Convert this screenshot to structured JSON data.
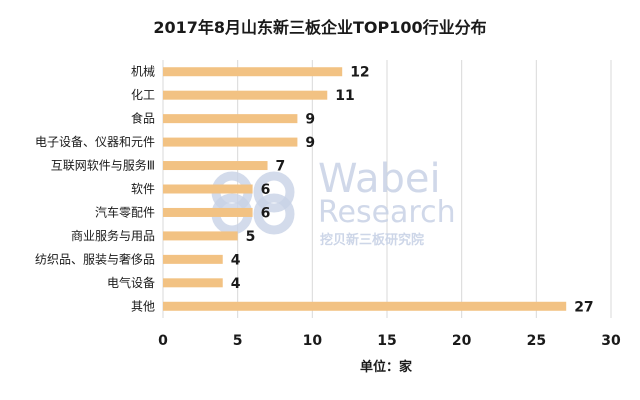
{
  "chart_data": {
    "type": "bar",
    "orientation": "horizontal",
    "title": "2017年8月山东新三板企业TOP100行业分布",
    "categories": [
      "机械",
      "化工",
      "食品",
      "电子设备、仪器和元件",
      "互联网软件与服务Ⅲ",
      "软件",
      "汽车零配件",
      "商业服务与用品",
      "纺织品、服装与奢侈品",
      "电气设备",
      "其他"
    ],
    "values": [
      12,
      11,
      9,
      9,
      7,
      6,
      6,
      5,
      4,
      4,
      27
    ],
    "xlabel": "单位：家",
    "ylabel": "",
    "xlim": [
      0,
      30
    ],
    "xticks": [
      0,
      5,
      10,
      15,
      20,
      25,
      30
    ],
    "grid": true,
    "bar_color": "#f2c283"
  },
  "watermark": {
    "brand_line1": "Wabei",
    "brand_line2": "Research",
    "brand_cn": "挖贝新三板研究院",
    "color": "#c8d2e6"
  }
}
